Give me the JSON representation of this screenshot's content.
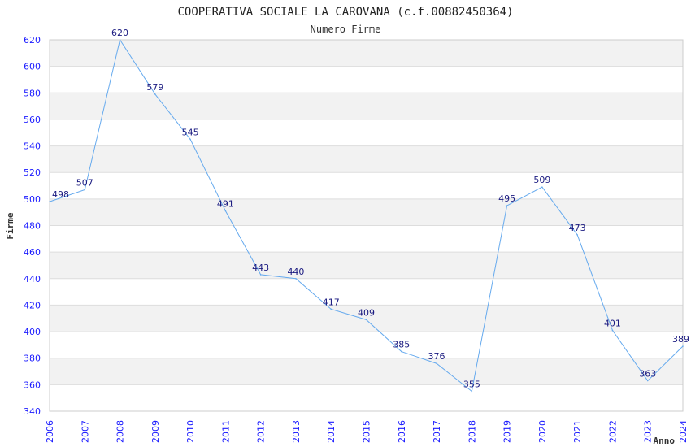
{
  "chart_data": {
    "type": "line",
    "title": "COOPERATIVA SOCIALE LA CAROVANA (c.f.00882450364)",
    "subtitle": "Numero Firme",
    "xlabel": "Anno",
    "ylabel": "Firme",
    "x": [
      "2006",
      "2007",
      "2008",
      "2009",
      "2010",
      "2011",
      "2012",
      "2013",
      "2014",
      "2015",
      "2016",
      "2017",
      "2018",
      "2019",
      "2020",
      "2021",
      "2022",
      "2023",
      "2024"
    ],
    "values": [
      498,
      507,
      620,
      579,
      545,
      491,
      443,
      440,
      417,
      409,
      385,
      376,
      355,
      495,
      509,
      473,
      401,
      363,
      389
    ],
    "ylim": [
      340,
      620
    ],
    "yticks": [
      340,
      360,
      380,
      400,
      420,
      440,
      460,
      480,
      500,
      520,
      540,
      560,
      580,
      600,
      620
    ],
    "grid": true,
    "line_color": "#66aaee",
    "tick_color": "#1a1aff",
    "label_color": "#1a1a80",
    "band_color": "#f2f2f2"
  }
}
